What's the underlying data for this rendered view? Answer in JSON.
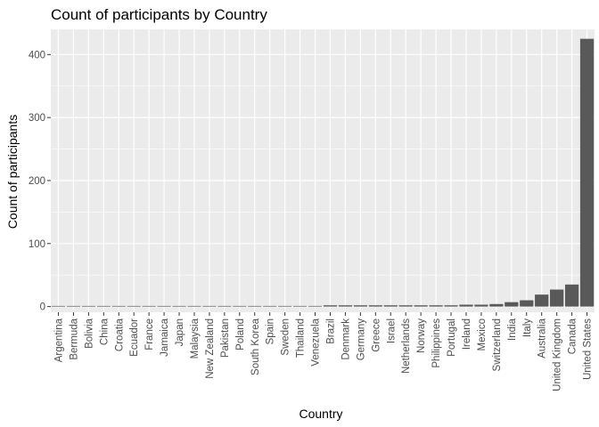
{
  "chart_data": {
    "type": "bar",
    "title": "Count of participants by Country",
    "xlabel": "Country",
    "ylabel": "Count of participants",
    "ylim": [
      -9,
      440
    ],
    "yticks": [
      0,
      100,
      200,
      300,
      400
    ],
    "grid": true,
    "legend": "none",
    "bar_color": "#595959",
    "panel_color": "#ebebeb",
    "categories": [
      "Argentina",
      "Bermuda",
      "Bolivia",
      "China",
      "Croatia",
      "Ecuador",
      "France",
      "Jamaica",
      "Japan",
      "Malaysia",
      "New Zealand",
      "Pakistan",
      "Poland",
      "South Korea",
      "Spain",
      "Sweden",
      "Thailand",
      "Venezuela",
      "Brazil",
      "Denmark",
      "Germany",
      "Greece",
      "Israel",
      "Netherlands",
      "Norway",
      "Philippines",
      "Portugal",
      "Ireland",
      "Mexico",
      "Switzerland",
      "India",
      "Italy",
      "Australia",
      "United Kingdom",
      "Canada",
      "United States"
    ],
    "values": [
      1,
      1,
      1,
      1,
      1,
      1,
      1,
      1,
      1,
      1,
      1,
      1,
      1,
      1,
      1,
      1,
      1,
      1,
      2,
      2,
      2,
      2,
      2,
      2,
      2,
      2,
      2,
      3,
      3,
      4,
      7,
      10,
      19,
      27,
      35,
      425
    ]
  }
}
